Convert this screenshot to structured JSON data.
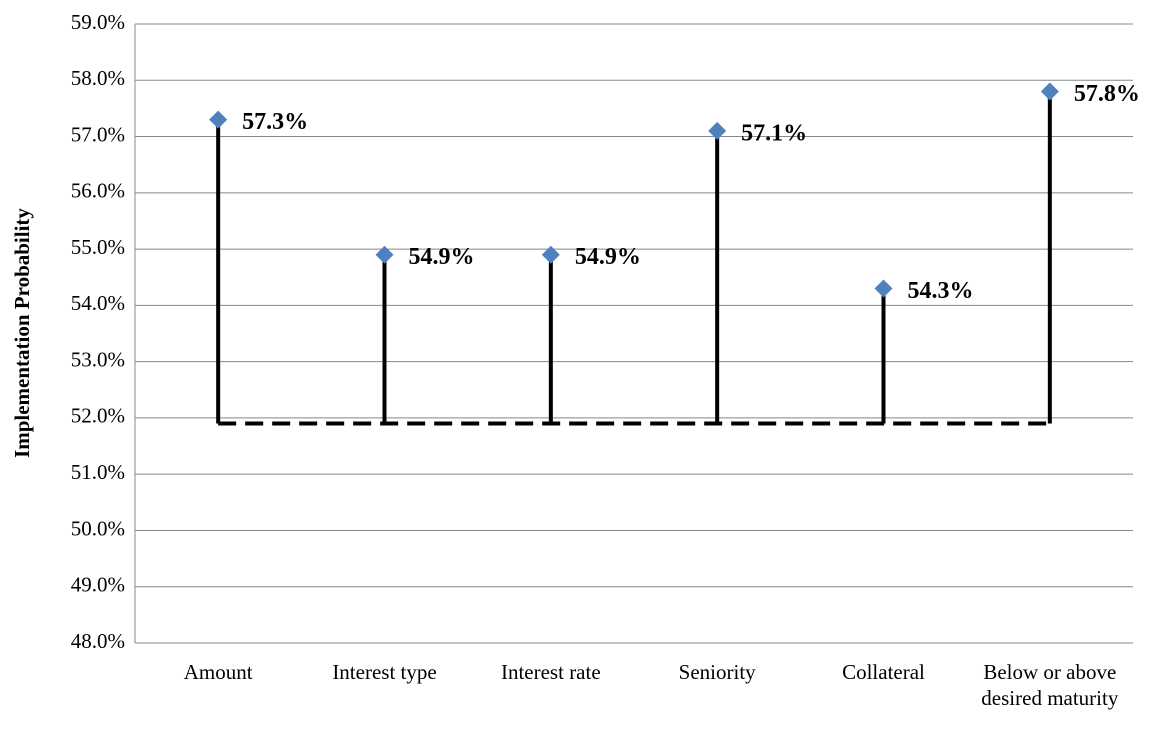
{
  "chart_data": {
    "type": "lollipop",
    "y_label": "Implementation Probability",
    "categories": [
      "Amount",
      "Interest type",
      "Interest rate",
      "Seniority",
      "Collateral",
      "Below or above desired maturity"
    ],
    "values": [
      57.3,
      54.9,
      54.9,
      57.1,
      54.3,
      57.8
    ],
    "value_labels": [
      "57.3%",
      "54.9%",
      "54.9%",
      "57.1%",
      "54.3%",
      "57.8%"
    ],
    "baseline": 51.9,
    "color": "#4f81bd",
    "stem_color": "#000000",
    "ylim": [
      48,
      59
    ],
    "yticks": [
      {
        "value": 48,
        "label": "48.0%"
      },
      {
        "value": 49,
        "label": "49.0%"
      },
      {
        "value": 50,
        "label": "50.0%"
      },
      {
        "value": 51,
        "label": "51.0%"
      },
      {
        "value": 52,
        "label": "52.0%"
      },
      {
        "value": 53,
        "label": "53.0%"
      },
      {
        "value": 54,
        "label": "54.0%"
      },
      {
        "value": 55,
        "label": "55.0%"
      },
      {
        "value": 56,
        "label": "56.0%"
      },
      {
        "value": 57,
        "label": "57.0%"
      },
      {
        "value": 58,
        "label": "58.0%"
      },
      {
        "value": 59,
        "label": "59.0%"
      }
    ],
    "grid": true
  }
}
